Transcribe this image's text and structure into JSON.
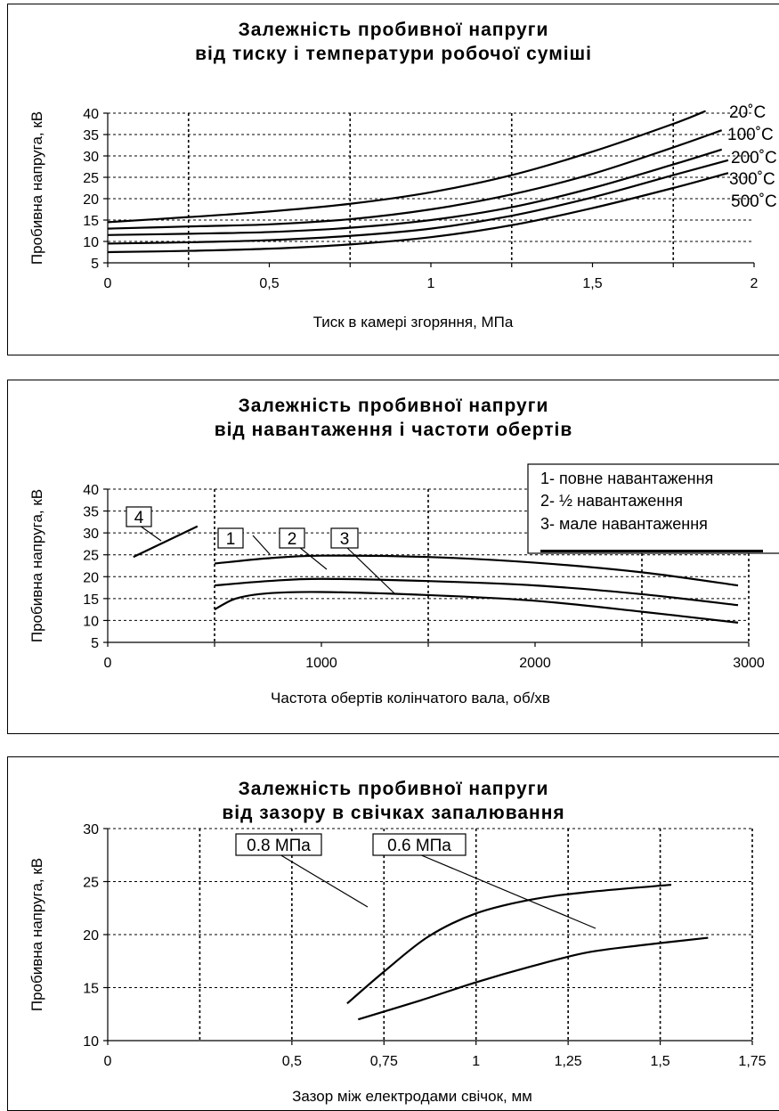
{
  "chart_data": [
    {
      "type": "line",
      "title": [
        "Залежність пробивної напруги",
        "від тиску і температури робочої суміші"
      ],
      "xlabel": "Тиск в камері згоряння, МПа",
      "ylabel": "Пробивна напруга, кВ",
      "xlim": [
        0,
        2
      ],
      "ylim": [
        5,
        40
      ],
      "xticks": [
        0,
        0.5,
        1,
        1.5,
        2
      ],
      "xtick_labels": [
        "0",
        "0,5",
        "1",
        "1,5",
        "2"
      ],
      "yticks": [
        5,
        10,
        15,
        20,
        25,
        30,
        35,
        40
      ],
      "ytick_labels": [
        "5",
        "10",
        "15",
        "20",
        "25",
        "30",
        "35",
        "40"
      ],
      "series": [
        {
          "name": "20˚C",
          "x": [
            0,
            0.25,
            0.5,
            0.75,
            1,
            1.25,
            1.5,
            1.75,
            1.85
          ],
          "y": [
            14.5,
            15.7,
            17,
            18.8,
            21.5,
            25.5,
            31,
            37.5,
            40.5
          ]
        },
        {
          "name": "100˚C",
          "x": [
            0,
            0.25,
            0.5,
            0.75,
            1,
            1.25,
            1.5,
            1.75,
            1.9
          ],
          "y": [
            13,
            13.5,
            14,
            15.2,
            17.5,
            21,
            25.8,
            32,
            36
          ]
        },
        {
          "name": "200˚C",
          "x": [
            0,
            0.25,
            0.5,
            0.75,
            1,
            1.25,
            1.5,
            1.75,
            1.9
          ],
          "y": [
            11.5,
            11.8,
            12.2,
            13.2,
            15,
            18,
            22.5,
            28,
            31.5
          ]
        },
        {
          "name": "300˚C",
          "x": [
            0,
            0.25,
            0.5,
            0.75,
            1,
            1.25,
            1.5,
            1.75,
            1.92
          ],
          "y": [
            9.5,
            9.8,
            10.3,
            11.3,
            13,
            16,
            20.3,
            25.5,
            29
          ]
        },
        {
          "name": "500˚C",
          "x": [
            0,
            0.25,
            0.5,
            0.75,
            1,
            1.25,
            1.5,
            1.75,
            1.92
          ],
          "y": [
            7.5,
            7.8,
            8.3,
            9.3,
            11,
            13.8,
            17.8,
            22.5,
            26
          ]
        }
      ],
      "series_labels": [
        "20˚C",
        "100˚C",
        "200˚C",
        "300˚C",
        "500˚C"
      ]
    },
    {
      "type": "line",
      "title": [
        "Залежність пробивної напруги",
        "від навантаження і частоти обертів"
      ],
      "xlabel": "Частота обертів колінчатого вала, об/хв",
      "ylabel": "Пробивна напруга, кВ",
      "xlim": [
        0,
        3000
      ],
      "ylim": [
        5,
        40
      ],
      "xticks": [
        0,
        1000,
        2000,
        3000
      ],
      "xtick_labels": [
        "0",
        "1000",
        "2000",
        "3000"
      ],
      "yticks": [
        5,
        10,
        15,
        20,
        25,
        30,
        35,
        40
      ],
      "ytick_labels": [
        "5",
        "10",
        "15",
        "20",
        "25",
        "30",
        "35",
        "40"
      ],
      "series": [
        {
          "name": "1",
          "x": [
            500,
            750,
            1000,
            1500,
            2000,
            2500,
            2950
          ],
          "y": [
            23,
            24.2,
            24.8,
            24.5,
            23.2,
            21,
            18
          ]
        },
        {
          "name": "2",
          "x": [
            500,
            750,
            1000,
            1500,
            2000,
            2500,
            2950
          ],
          "y": [
            18,
            19,
            19.5,
            19,
            18,
            16,
            13.5
          ]
        },
        {
          "name": "3",
          "x": [
            500,
            600,
            750,
            1000,
            1500,
            2000,
            2500,
            2950
          ],
          "y": [
            12.5,
            15,
            16.2,
            16.5,
            15.8,
            14.5,
            12,
            9.5
          ]
        },
        {
          "name": "4",
          "x": [
            120,
            420
          ],
          "y": [
            24.5,
            31.5
          ]
        }
      ],
      "box_labels": [
        "4",
        "1",
        "2",
        "3"
      ],
      "legend": {
        "position": "top-right",
        "entries": [
          "1-  повне навантаження",
          "2-  ½ навантаження",
          "3-  мале навантаження"
        ]
      }
    },
    {
      "type": "line",
      "title": [
        "Залежність пробивної напруги",
        "від зазору в свічках запалювання"
      ],
      "xlabel": "Зазор між електродами свічок, мм",
      "ylabel": "Пробивна напруга, кВ",
      "xlim": [
        0,
        1.75
      ],
      "ylim": [
        10,
        30
      ],
      "xticks": [
        0,
        0.5,
        0.75,
        1,
        1.25,
        1.5,
        1.75
      ],
      "xtick_labels": [
        "0",
        "0,5",
        "0,75",
        "1",
        "1,25",
        "1,5",
        "1,75"
      ],
      "yticks": [
        10,
        15,
        20,
        25,
        30
      ],
      "ytick_labels": [
        "10",
        "15",
        "20",
        "25",
        "30"
      ],
      "series": [
        {
          "name": "0.8 МПа",
          "x": [
            0.65,
            0.75,
            0.87,
            1,
            1.15,
            1.3,
            1.53
          ],
          "y": [
            13.5,
            16.5,
            19.8,
            22,
            23.3,
            24,
            24.7
          ]
        },
        {
          "name": "0.6 МПа",
          "x": [
            0.68,
            0.85,
            1,
            1.15,
            1.3,
            1.45,
            1.63
          ],
          "y": [
            12,
            13.8,
            15.5,
            17,
            18.3,
            19,
            19.7
          ]
        }
      ],
      "box_labels": [
        "0.8 МПа",
        "0.6 МПа"
      ]
    }
  ]
}
